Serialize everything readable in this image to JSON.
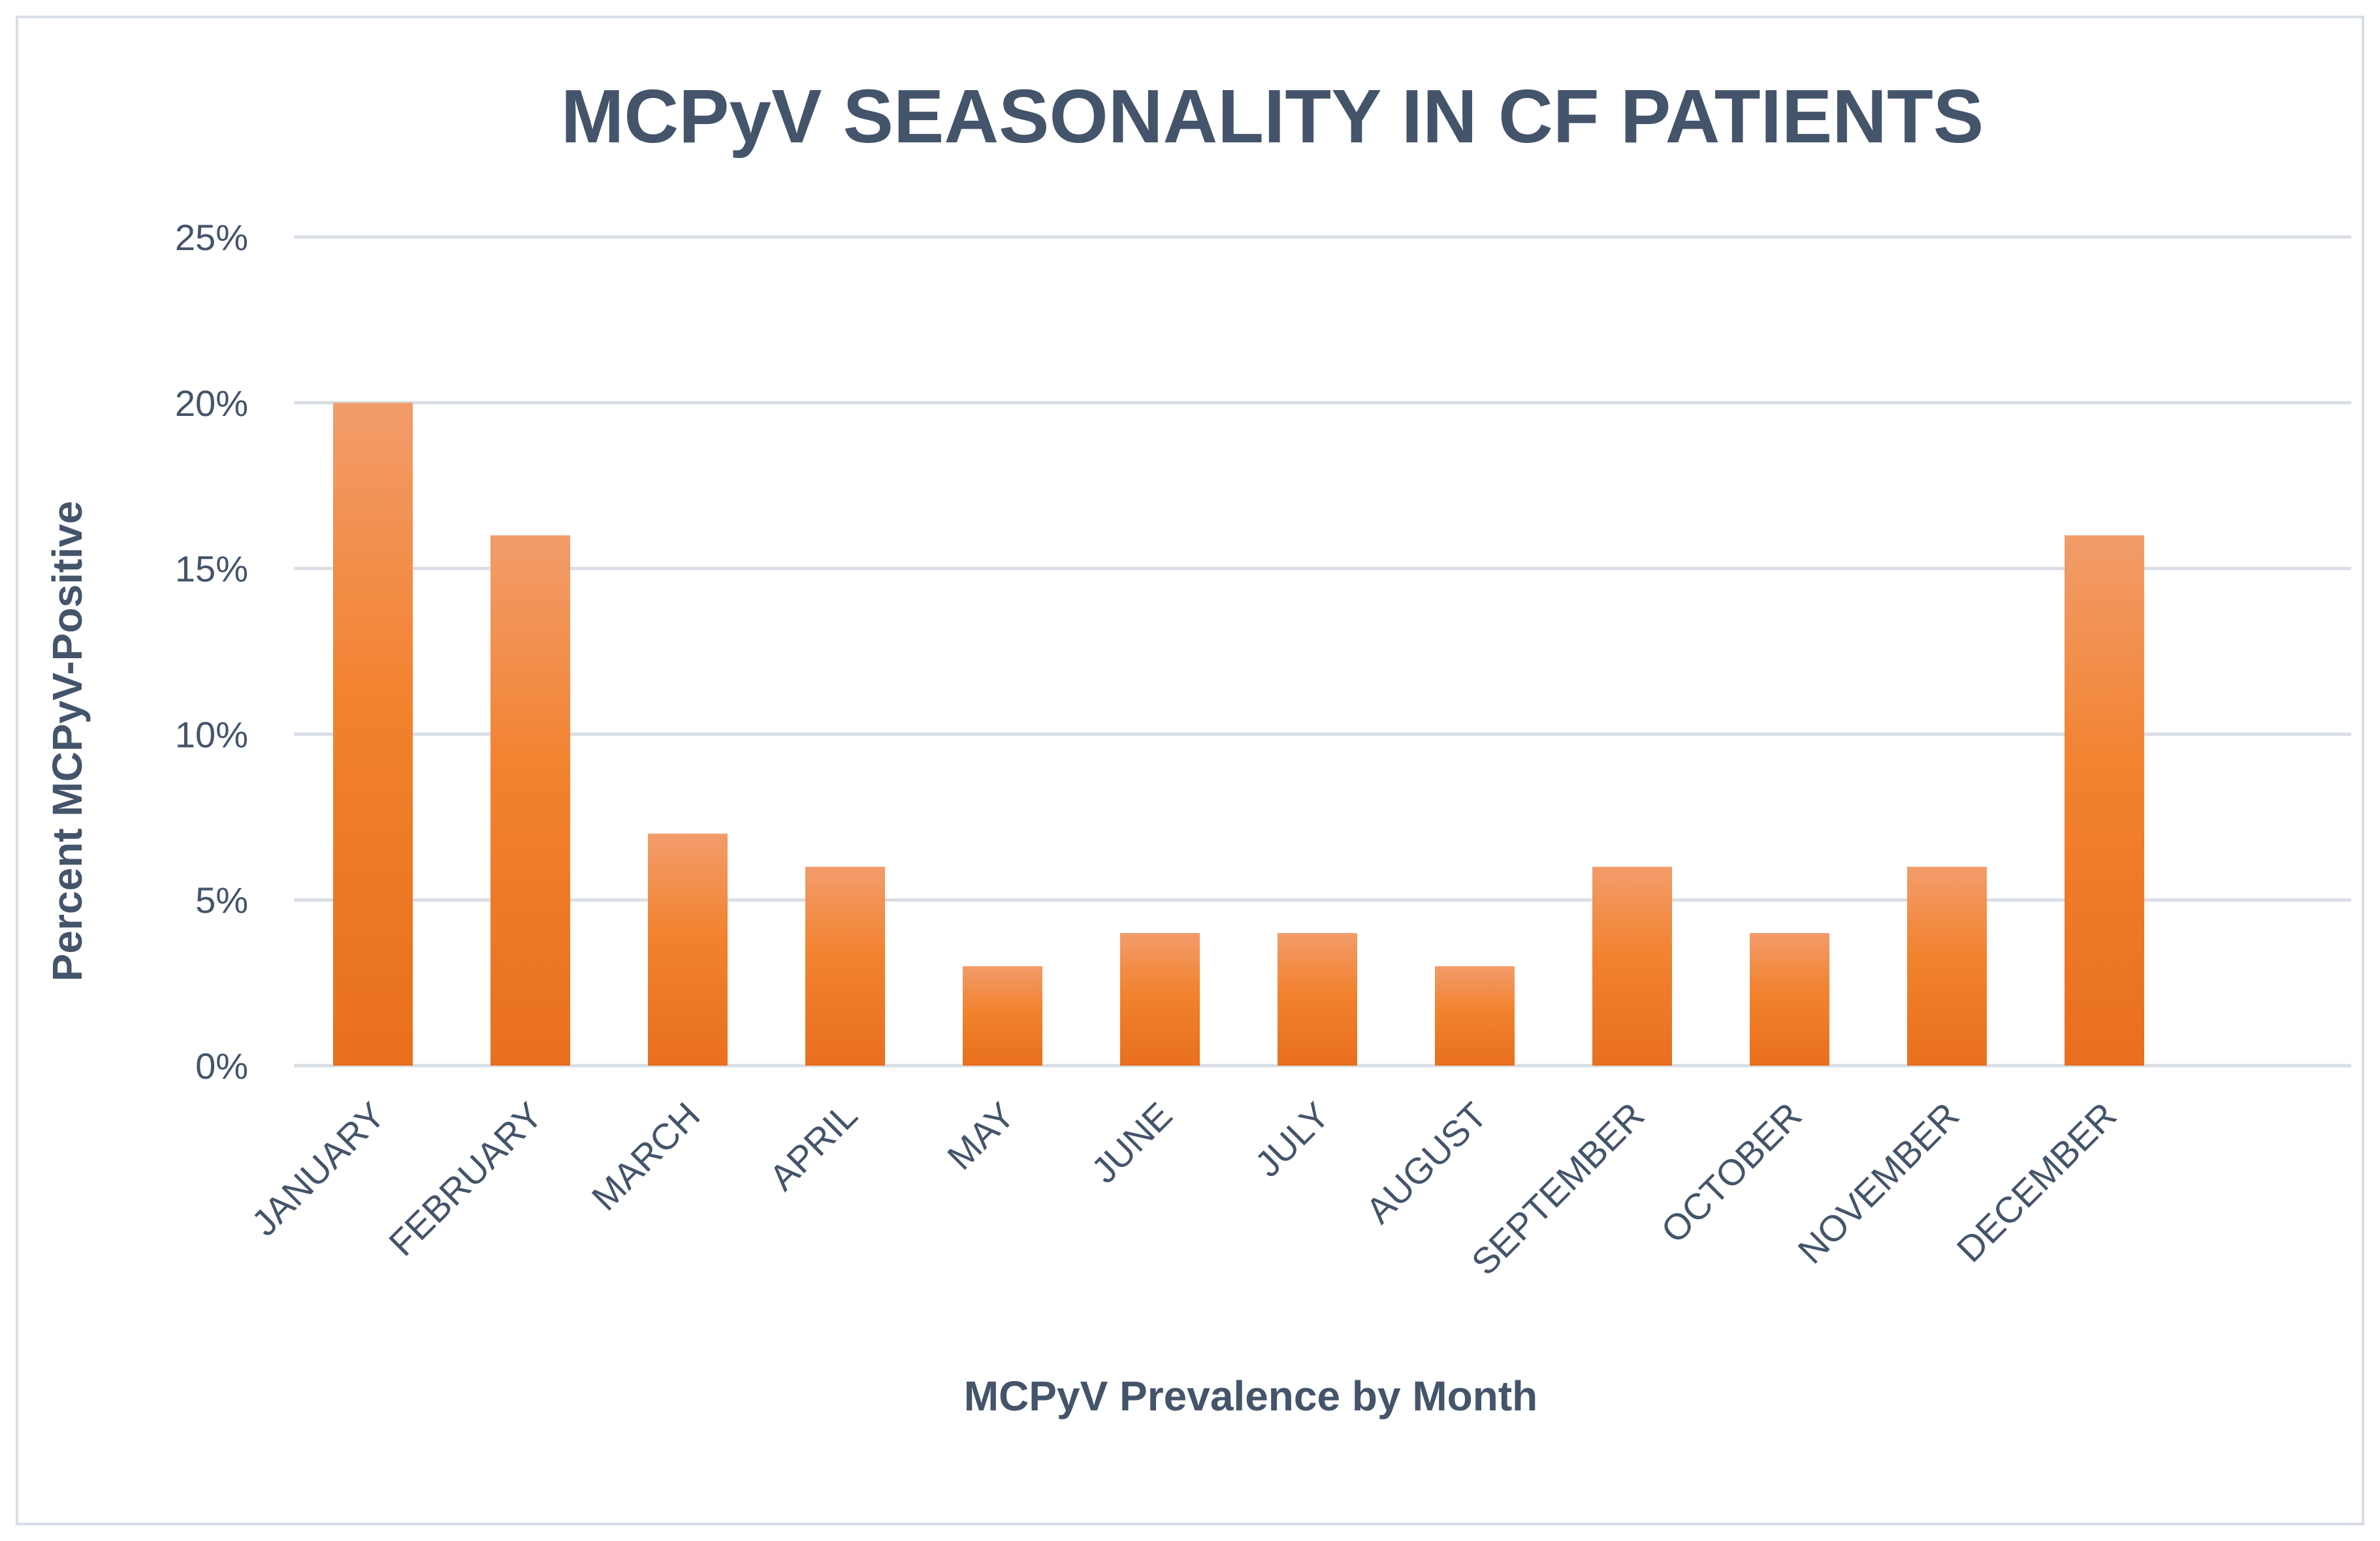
{
  "chart_data": {
    "type": "bar",
    "title": "MCPyV SEASONALITY IN CF PATIENTS",
    "xlabel": "MCPyV Prevalence by Month",
    "ylabel": "Percent MCPyV-Positive",
    "categories": [
      "JANUARY",
      "FEBRUARY",
      "MARCH",
      "APRIL",
      "MAY",
      "JUNE",
      "JULY",
      "AUGUST",
      "SEPTEMBER",
      "OCTOBER",
      "NOVEMBER",
      "DECEMBER"
    ],
    "values": [
      20,
      16,
      7,
      6,
      3,
      4,
      4,
      3,
      6,
      4,
      6,
      16
    ],
    "value_unit": "%",
    "ylim": [
      0,
      25
    ],
    "yticks": [
      0,
      5,
      10,
      15,
      20,
      25
    ],
    "ytick_labels": [
      "0%",
      "5%",
      "10%",
      "15%",
      "20%",
      "25%"
    ],
    "grid": true,
    "legend": "none",
    "colors": {
      "bar_top": "#f29c6b",
      "bar_mid": "#f2822e",
      "bar_bottom": "#e86f1e",
      "text": "#44546a",
      "grid": "#d9dee6"
    }
  }
}
